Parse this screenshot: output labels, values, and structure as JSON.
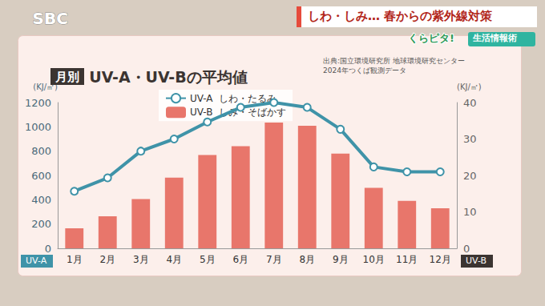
{
  "chart_data": {
    "type": "bar",
    "title": "UV-A・UV-Bの平均値",
    "title_tag": "月別",
    "subtitle": [
      "出典:国立環境研究所 地球環境研究センター",
      "2024年つくば観測データ"
    ],
    "categories": [
      "1月",
      "2月",
      "3月",
      "4月",
      "5月",
      "6月",
      "7月",
      "8月",
      "9月",
      "10月",
      "11月",
      "12月"
    ],
    "series": [
      {
        "name": "UV-A",
        "annotation": "しわ・たるみ",
        "type": "line",
        "marker": "circle",
        "color": "#3f93a8",
        "values": [
          470,
          580,
          800,
          900,
          1040,
          1160,
          1200,
          1160,
          980,
          670,
          630,
          630
        ]
      },
      {
        "name": "UV-B",
        "annotation": "しみ・そばかす",
        "type": "bar",
        "axis": "y2",
        "color": "#e8766b",
        "values": [
          5.5,
          8.8,
          13.5,
          19.4,
          25.6,
          28,
          34.5,
          33.6,
          26,
          16.6,
          13,
          11
        ]
      }
    ],
    "ylabel": "(KJ/㎡)",
    "y2label": "(KJ/㎡)",
    "ylim": [
      0,
      1200
    ],
    "yticks": [
      0,
      200,
      400,
      600,
      800,
      1000,
      1200
    ],
    "y2lim": [
      0,
      40
    ],
    "y2ticks": [
      0,
      10,
      20,
      30,
      40
    ],
    "axis_tags": {
      "y": "UV-A",
      "y2": "UV-B"
    },
    "grid": false,
    "legend": "top-left",
    "screen_texts": {
      "channel": "SBC",
      "headline": "しわ・しみ… 春からの紫外線対策",
      "program": "くらピタ!",
      "segment": "生活情報術"
    }
  }
}
